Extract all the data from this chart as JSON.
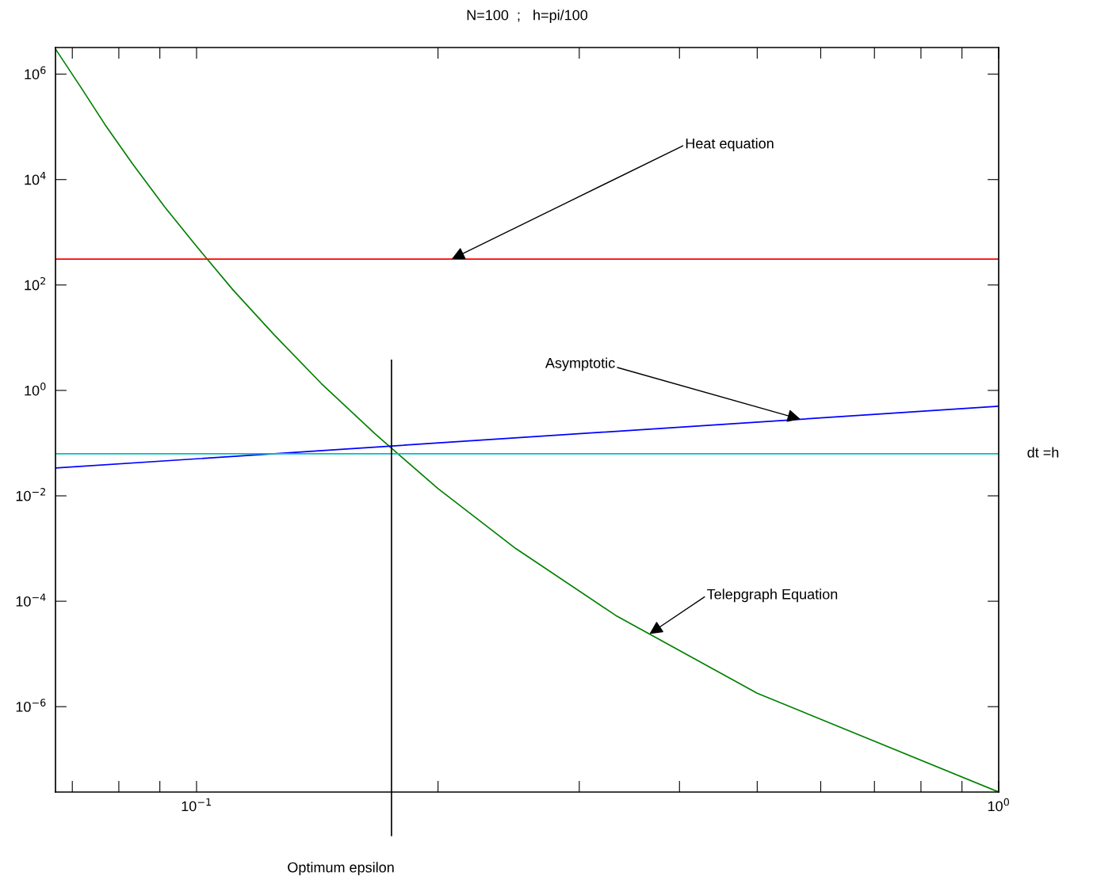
{
  "chart_data": {
    "type": "line",
    "title": "N=100  ;   h=pi/100",
    "log": "xy",
    "grid": false,
    "legend": false,
    "marker": "none",
    "line_style": "solid",
    "xlim": [
      0.0667,
      1
    ],
    "ylim": [
      2.4e-08,
      3200000.0
    ],
    "xticks": [
      {
        "value": 0.07,
        "label": null
      },
      {
        "value": 0.08,
        "label": null
      },
      {
        "value": 0.09,
        "label": null
      },
      {
        "value": 0.1,
        "label": "10$^{−1}$"
      },
      {
        "value": 0.2,
        "label": null
      },
      {
        "value": 0.3,
        "label": null
      },
      {
        "value": 0.4,
        "label": null
      },
      {
        "value": 0.5,
        "label": null
      },
      {
        "value": 0.6,
        "label": null
      },
      {
        "value": 0.7,
        "label": null
      },
      {
        "value": 0.8,
        "label": null
      },
      {
        "value": 0.9,
        "label": null
      },
      {
        "value": 1,
        "label": "10$^{0}$"
      }
    ],
    "yticks": [
      {
        "value": 1e-06,
        "label": "10$^{−6}$"
      },
      {
        "value": 0.0001,
        "label": "10$^{−4}$"
      },
      {
        "value": 0.01,
        "label": "10$^{−2}$"
      },
      {
        "value": 1,
        "label": "10$^{0}$"
      },
      {
        "value": 100,
        "label": "10$^{2}$"
      },
      {
        "value": 10000.0,
        "label": "10$^{4}$"
      },
      {
        "value": 1000000.0,
        "label": "10$^{6}$"
      }
    ],
    "series": [
      {
        "color": "#008000",
        "x": [
          0.0667,
          0.0716,
          0.0769,
          0.0832,
          0.0913,
          0.1,
          0.111,
          0.125,
          0.143,
          0.167,
          0.2,
          0.25,
          0.333,
          0.5,
          1
        ],
        "values": [
          3000000.0,
          590000.0,
          110000.0,
          20000.0,
          3000.0,
          540,
          81,
          11.3,
          1.36,
          0.149,
          0.0137,
          0.001,
          5.4e-05,
          1.8e-06,
          2.4e-08
        ]
      },
      {
        "color": "#0000ff",
        "x": [
          0.0667,
          1
        ],
        "values": [
          0.0337,
          0.5
        ]
      }
    ],
    "ref_lines": [
      {
        "axis": "y",
        "value": 310,
        "color": "#ff0000"
      },
      {
        "axis": "y",
        "value": 0.063,
        "color": "#00bfbf",
        "label": "dt =h"
      },
      {
        "axis": "x",
        "value": 0.175,
        "color": "#000000",
        "label": "Optimum epsilon"
      }
    ],
    "annotations": [
      {
        "text": "Heat equation",
        "x": 0.208,
        "y": 310
      },
      {
        "text": "Asymptotic",
        "x": 0.566,
        "y": 0.284
      },
      {
        "text": "Telepgraph Equation",
        "x": 0.367,
        "y": 2.4e-05
      }
    ]
  }
}
